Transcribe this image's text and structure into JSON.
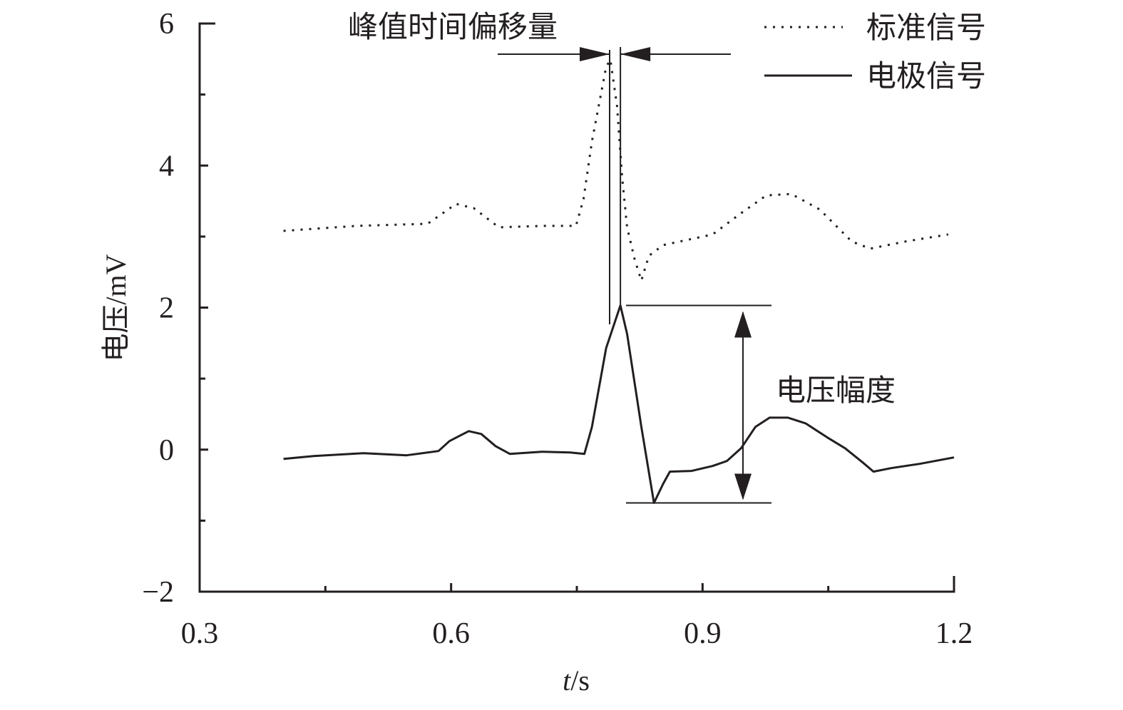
{
  "chart_data": {
    "type": "line",
    "title": "",
    "xlabel": "t/s",
    "xlabel_italic_part": "t",
    "xlabel_rest": "/s",
    "ylabel": "电压/mV",
    "xlim": [
      0.3,
      1.2
    ],
    "ylim": [
      -2,
      6
    ],
    "xticks": [
      0.3,
      0.6,
      0.9,
      1.2
    ],
    "xtick_labels": [
      "0.3",
      "0.6",
      "0.9",
      "1.2"
    ],
    "yticks": [
      6,
      4,
      2,
      0,
      -2
    ],
    "ytick_labels": [
      "6",
      "4",
      "2",
      "0",
      "−2"
    ],
    "grid": false,
    "legend_placement": "top-right",
    "series": [
      {
        "name": "标准信号",
        "style": "dotted",
        "color": "#231f20",
        "x": [
          0.4,
          0.487,
          0.572,
          0.606,
          0.627,
          0.657,
          0.708,
          0.749,
          0.758,
          0.768,
          0.785,
          0.79,
          0.798,
          0.804,
          0.81,
          0.819,
          0.827,
          0.836,
          0.853,
          0.912,
          0.946,
          0.976,
          1.006,
          1.04,
          1.078,
          1.1,
          1.142,
          1.193
        ],
        "y": [
          3.08,
          3.15,
          3.18,
          3.46,
          3.4,
          3.13,
          3.15,
          3.15,
          3.53,
          4.34,
          5.39,
          5.49,
          4.84,
          3.84,
          3.13,
          2.68,
          2.38,
          2.73,
          2.88,
          3.03,
          3.33,
          3.58,
          3.6,
          3.38,
          2.93,
          2.83,
          2.93,
          3.03
        ]
      },
      {
        "name": "电极信号",
        "style": "solid",
        "color": "#231f20",
        "x": [
          0.4,
          0.436,
          0.496,
          0.547,
          0.585,
          0.598,
          0.621,
          0.636,
          0.653,
          0.67,
          0.708,
          0.742,
          0.759,
          0.768,
          0.785,
          0.802,
          0.81,
          0.827,
          0.842,
          0.853,
          0.861,
          0.887,
          0.912,
          0.929,
          0.946,
          0.963,
          0.98,
          1.002,
          1.023,
          1.049,
          1.07,
          1.091,
          1.104,
          1.125,
          1.159,
          1.2
        ],
        "y": [
          -0.13,
          -0.09,
          -0.05,
          -0.08,
          -0.02,
          0.12,
          0.26,
          0.22,
          0.05,
          -0.06,
          -0.03,
          -0.04,
          -0.06,
          0.32,
          1.43,
          2.03,
          1.63,
          0.32,
          -0.75,
          -0.48,
          -0.31,
          -0.3,
          -0.23,
          -0.16,
          0.02,
          0.32,
          0.45,
          0.45,
          0.37,
          0.17,
          0.02,
          -0.18,
          -0.31,
          -0.26,
          -0.2,
          -0.11
        ]
      }
    ],
    "annotations": {
      "peak_offset_label": "峰值时间偏移量",
      "amplitude_label": "电压幅度"
    }
  }
}
